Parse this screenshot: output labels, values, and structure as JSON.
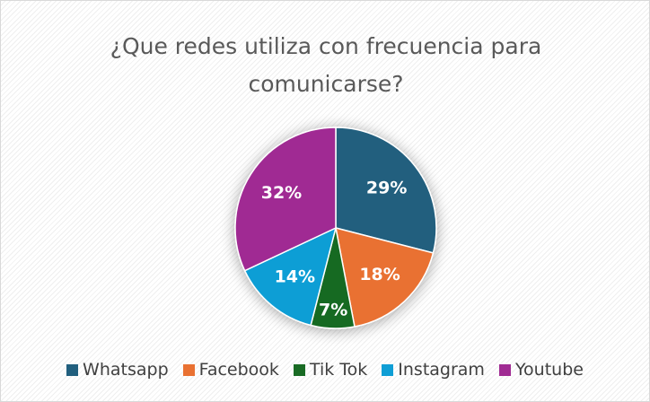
{
  "chart_data": {
    "type": "pie",
    "title": "¿Que redes utiliza con frecuencia para comunicarse?",
    "categories": [
      "Whatsapp",
      "Facebook",
      "Tik Tok",
      "Instagram",
      "Youtube"
    ],
    "values": [
      29,
      18,
      7,
      14,
      32
    ],
    "value_labels": [
      "29%",
      "18%",
      "7%",
      "14%",
      "32%"
    ],
    "colors": [
      "#215f7e",
      "#e97132",
      "#196b24",
      "#0f9ed5",
      "#a02b93"
    ],
    "legend": "bottom"
  }
}
